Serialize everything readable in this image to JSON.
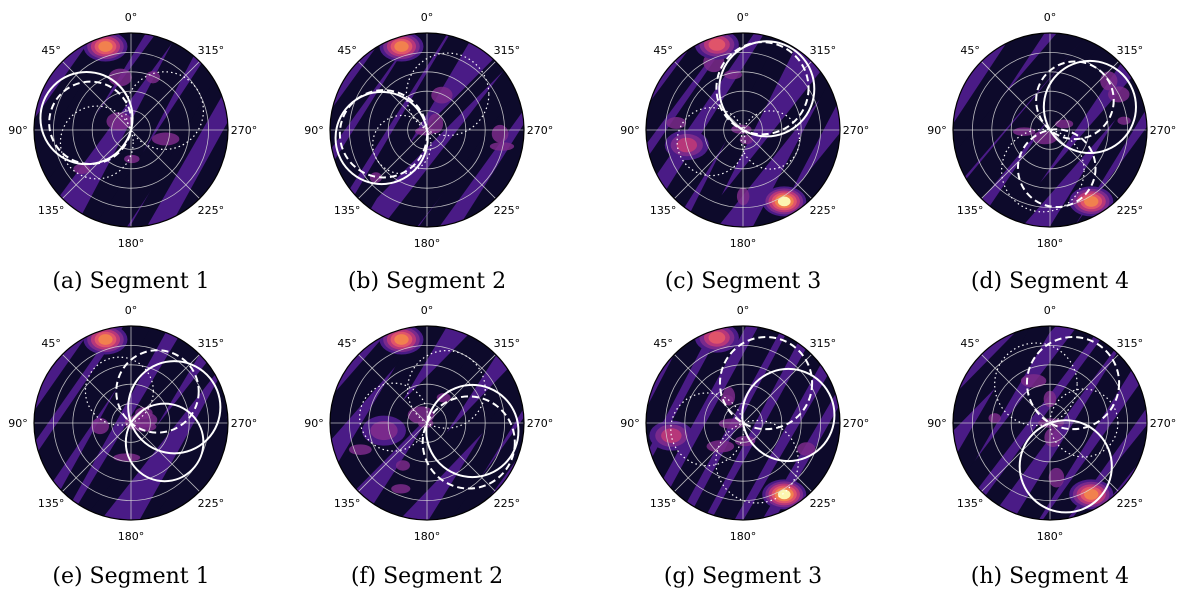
{
  "figure": {
    "angle_labels": [
      "0°",
      "315°",
      "270°",
      "225°",
      "180°",
      "135°",
      "90°",
      "45°"
    ],
    "colors": {
      "background_dark": "#0d0a2b",
      "mid_purple": "#4a1b86",
      "magenta": "#b7377a",
      "orange": "#f1814e",
      "pale_yellow": "#fcf5b0",
      "curves": "#ffffff",
      "grid": "#d8d8d8"
    },
    "panels": [
      {
        "caption": "(a) Segment 1",
        "hot_spots": [
          {
            "angle_deg": 17,
            "r": 0.9,
            "level": 4
          }
        ],
        "curves": [
          {
            "style": "solid",
            "angle_deg": 75,
            "d": 0.95
          },
          {
            "style": "dashed",
            "angle_deg": 80,
            "d": 0.85
          },
          {
            "style": "dotted",
            "angle_deg": 300,
            "d": 0.8
          },
          {
            "style": "dotted",
            "angle_deg": 110,
            "d": 0.75
          }
        ]
      },
      {
        "caption": "(b) Segment 2",
        "hot_spots": [
          {
            "angle_deg": 17,
            "r": 0.9,
            "level": 4
          }
        ],
        "curves": [
          {
            "style": "solid",
            "angle_deg": 100,
            "d": 0.95
          },
          {
            "style": "dashed",
            "angle_deg": 95,
            "d": 0.9
          },
          {
            "style": "dotted",
            "angle_deg": 330,
            "d": 0.85
          },
          {
            "style": "dotted",
            "angle_deg": 120,
            "d": 0.6
          }
        ]
      },
      {
        "caption": "(c) Segment 3",
        "hot_spots": [
          {
            "angle_deg": 17,
            "r": 0.92,
            "level": 3
          },
          {
            "angle_deg": 210,
            "r": 0.85,
            "level": 5
          },
          {
            "angle_deg": 105,
            "r": 0.6,
            "level": 2
          }
        ],
        "curves": [
          {
            "style": "solid",
            "angle_deg": 330,
            "d": 0.98
          },
          {
            "style": "dashed",
            "angle_deg": 335,
            "d": 0.95
          },
          {
            "style": "dotted",
            "angle_deg": 110,
            "d": 0.7
          },
          {
            "style": "dotted",
            "angle_deg": 250,
            "d": 0.6
          }
        ]
      },
      {
        "caption": "(d) Segment 4",
        "hot_spots": [
          {
            "angle_deg": 210,
            "r": 0.85,
            "level": 4
          }
        ],
        "curves": [
          {
            "style": "solid",
            "angle_deg": 300,
            "d": 0.95
          },
          {
            "style": "dashed",
            "angle_deg": 320,
            "d": 0.8
          },
          {
            "style": "dotted",
            "angle_deg": 170,
            "d": 0.85
          },
          {
            "style": "dashed",
            "angle_deg": 190,
            "d": 0.8
          }
        ]
      },
      {
        "caption": "(e) Segment 1",
        "hot_spots": [
          {
            "angle_deg": 17,
            "r": 0.9,
            "level": 4
          }
        ],
        "curves": [
          {
            "style": "solid",
            "angle_deg": 290,
            "d": 0.95
          },
          {
            "style": "solid",
            "angle_deg": 240,
            "d": 0.8
          },
          {
            "style": "dashed",
            "angle_deg": 320,
            "d": 0.85
          },
          {
            "style": "dotted",
            "angle_deg": 20,
            "d": 0.7
          }
        ]
      },
      {
        "caption": "(f) Segment 2",
        "hot_spots": [
          {
            "angle_deg": 17,
            "r": 0.9,
            "level": 4
          },
          {
            "angle_deg": 100,
            "r": 0.45,
            "level": 1
          }
        ],
        "curves": [
          {
            "style": "solid",
            "angle_deg": 260,
            "d": 0.95
          },
          {
            "style": "dashed",
            "angle_deg": 245,
            "d": 0.95
          },
          {
            "style": "dotted",
            "angle_deg": 330,
            "d": 0.8
          },
          {
            "style": "dotted",
            "angle_deg": 80,
            "d": 0.7
          }
        ]
      },
      {
        "caption": "(g) Segment 3",
        "hot_spots": [
          {
            "angle_deg": 17,
            "r": 0.92,
            "level": 3
          },
          {
            "angle_deg": 210,
            "r": 0.85,
            "level": 5
          },
          {
            "angle_deg": 100,
            "r": 0.75,
            "level": 2
          }
        ],
        "curves": [
          {
            "style": "solid",
            "angle_deg": 280,
            "d": 0.95
          },
          {
            "style": "dashed",
            "angle_deg": 330,
            "d": 0.95
          },
          {
            "style": "dotted",
            "angle_deg": 100,
            "d": 0.75
          },
          {
            "style": "dotted",
            "angle_deg": 200,
            "d": 0.85
          }
        ]
      },
      {
        "caption": "(h) Segment 4",
        "hot_spots": [
          {
            "angle_deg": 210,
            "r": 0.85,
            "level": 4
          }
        ],
        "curves": [
          {
            "style": "solid",
            "angle_deg": 200,
            "d": 0.95
          },
          {
            "style": "dashed",
            "angle_deg": 330,
            "d": 0.95
          },
          {
            "style": "dotted",
            "angle_deg": 20,
            "d": 0.85
          },
          {
            "style": "dotted",
            "angle_deg": 270,
            "d": 0.7
          }
        ]
      }
    ]
  },
  "chart_data": {
    "type": "heatmap",
    "projection": "polar",
    "title": "",
    "grid": true,
    "angular_ticks_deg": [
      0,
      45,
      90,
      135,
      180,
      225,
      270,
      315
    ],
    "angular_tick_labels": [
      "0°",
      "45°",
      "90°",
      "135°",
      "180°",
      "225°",
      "270°",
      "315°"
    ],
    "panel_layout": "2 rows x 4 columns",
    "panels": [
      "(a) Segment 1",
      "(b) Segment 2",
      "(c) Segment 3",
      "(d) Segment 4",
      "(e) Segment 1",
      "(f) Segment 2",
      "(g) Segment 3",
      "(h) Segment 4"
    ]
  }
}
